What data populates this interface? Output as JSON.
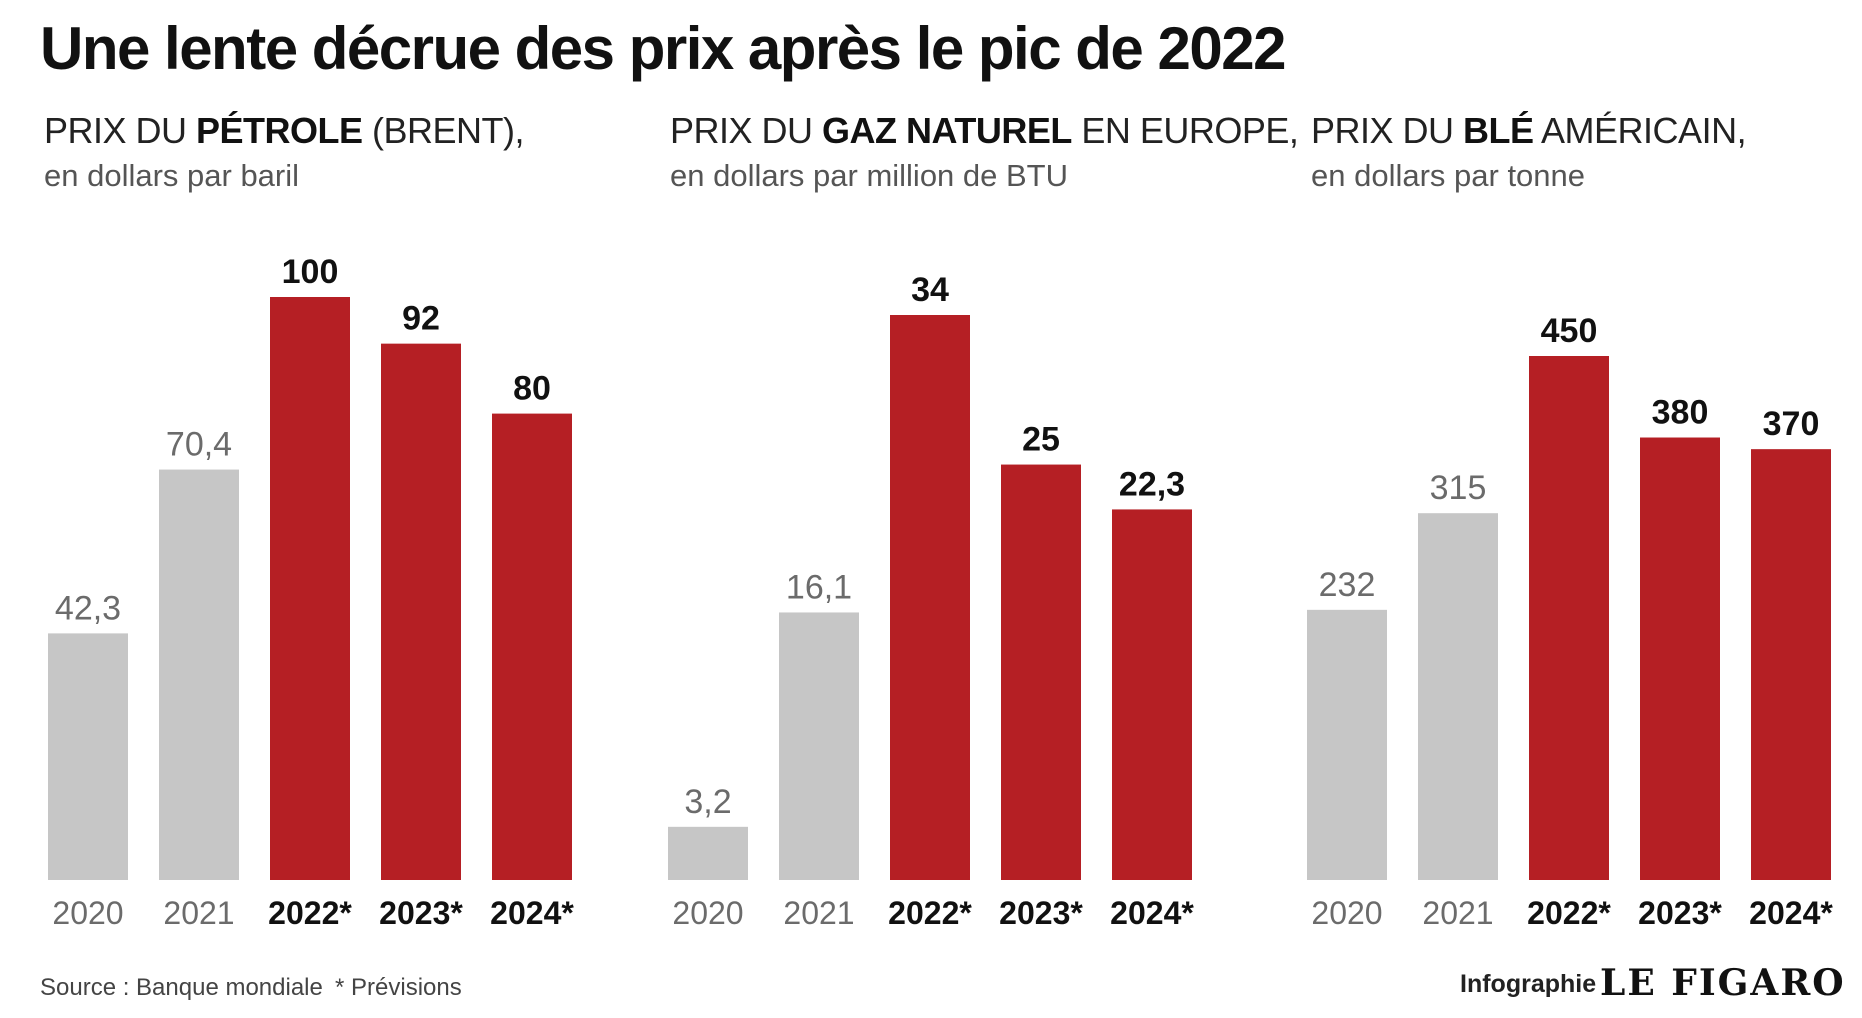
{
  "title": "Une lente décrue des prix après le pic de 2022",
  "colors": {
    "past": "#c6c6c6",
    "forecast": "#b51f24",
    "past_label": "#6b6b6b",
    "forecast_label": "#111111"
  },
  "chart_data": [
    {
      "type": "bar",
      "title_pre": "PRIX DU ",
      "title_bold": "PÉTROLE",
      "title_post": " (BRENT),",
      "unit": "en dollars par baril",
      "categories": [
        "2020",
        "2021",
        "2022*",
        "2023*",
        "2024*"
      ],
      "values": [
        42.3,
        70.4,
        100,
        92,
        80
      ],
      "value_labels": [
        "42,3",
        "70,4",
        "100",
        "92",
        "80"
      ],
      "forecast": [
        false,
        false,
        true,
        true,
        true
      ]
    },
    {
      "type": "bar",
      "title_pre": "PRIX DU ",
      "title_bold": "GAZ NATUREL",
      "title_post": " EN EUROPE,",
      "unit": "en dollars par million de BTU",
      "categories": [
        "2020",
        "2021",
        "2022*",
        "2023*",
        "2024*"
      ],
      "values": [
        3.2,
        16.1,
        34,
        25,
        22.3
      ],
      "value_labels": [
        "3,2",
        "16,1",
        "34",
        "25",
        "22,3"
      ],
      "forecast": [
        false,
        false,
        true,
        true,
        true
      ]
    },
    {
      "type": "bar",
      "title_pre": "PRIX DU ",
      "title_bold": "BLÉ",
      "title_post": " AMÉRICAIN,",
      "unit": "en dollars par tonne",
      "categories": [
        "2020",
        "2021",
        "2022*",
        "2023*",
        "2024*"
      ],
      "values": [
        232,
        315,
        450,
        380,
        370
      ],
      "value_labels": [
        "232",
        "315",
        "450",
        "380",
        "370"
      ],
      "forecast": [
        false,
        false,
        true,
        true,
        true
      ]
    }
  ],
  "footer": {
    "source": "Source : Banque mondiale",
    "note": "* Prévisions",
    "infographie": "Infographie",
    "brand": "LE FIGARO"
  }
}
